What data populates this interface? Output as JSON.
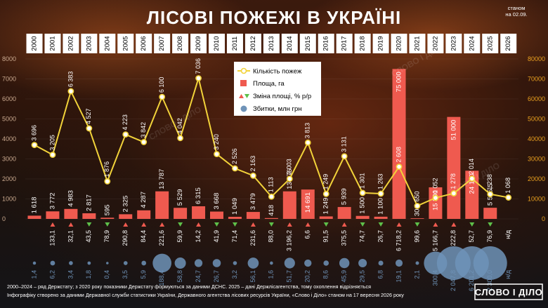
{
  "title": "ЛІСОВІ ПОЖЕЖІ В УКРАЇНІ",
  "as_of_note_line1": "станом",
  "as_of_note_line2": "на 02.09.",
  "legend": {
    "fires": "Кількість пожеж",
    "area": "Площа, га",
    "change": "Зміна площі, % р/р",
    "damage": "Збитки, млн грн"
  },
  "footer": {
    "line1": "2000–2024 – ряд Держстату; з 2020 року показники Держстату формуються за даними ДСНС. 2025 – дані Держлісагентства, тому охоплення відрізняється",
    "line2": "Інфографіку створено за даними Державної служби статистики України, Державного агентства лісових ресурсів України, «Слово і Діло» станом на 17 вересня 2026 року"
  },
  "logo": "СЛОВО І ДІЛО",
  "watermark": "СЛОВО І ДІЛО",
  "colors": {
    "fires_line": "#f2d33a",
    "area_bar": "#ef5a4f",
    "change_up": "#ef5a4f",
    "change_down": "#5ec04a",
    "damage_bubble": "#6f93b8",
    "year_box": "#ffffff"
  },
  "chart_data": {
    "type": "bar",
    "years": [
      "2000",
      "2001",
      "2002",
      "2003",
      "2004",
      "2005",
      "2006",
      "2007",
      "2008",
      "2009",
      "2010",
      "2011",
      "2012",
      "2013",
      "2014",
      "2015",
      "2016",
      "2017",
      "2018",
      "2019",
      "2020",
      "2021",
      "2022",
      "2023",
      "2024",
      "2025",
      "2026"
    ],
    "y_left": {
      "ylim": [
        0,
        8000
      ],
      "ticks": [
        "0",
        "1000",
        "2000",
        "3000",
        "4000",
        "5000",
        "6000",
        "7000",
        "8000"
      ]
    },
    "y_right": {
      "ylim": [
        0,
        80000
      ],
      "ticks": [
        "0",
        "10000",
        "20000",
        "30000",
        "40000",
        "50000",
        "60000",
        "70000",
        "80000"
      ]
    },
    "series": [
      {
        "name": "Кількість пожеж",
        "axis": "left",
        "type": "line",
        "values": [
          3696,
          3205,
          6383,
          4527,
          1876,
          4223,
          3842,
          6100,
          4042,
          7036,
          3240,
          2526,
          2163,
          1113,
          2003,
          3813,
          1249,
          3131,
          1301,
          1263,
          2608,
          650,
          1052,
          1278,
          2014,
          1238,
          1068
        ],
        "labels": [
          "3 696",
          "3 205",
          "6 383",
          "4 527",
          "1 876",
          "4 223",
          "3 842",
          "6 100",
          "4 042",
          "7 036",
          "3 240",
          "2 526",
          "2 163",
          "1 113",
          "2 003",
          "3 813",
          "1 249",
          "3 131",
          "1 301",
          "1 263",
          "2 608",
          "650",
          "1 052",
          "1 278",
          "2 014",
          "1 238",
          "1 068"
        ]
      },
      {
        "name": "Площа, га",
        "axis": "right",
        "type": "bar",
        "values": [
          1618,
          3772,
          4983,
          2817,
          595,
          2325,
          4287,
          13787,
          5529,
          6315,
          3668,
          1049,
          3479,
          418,
          13776,
          14691,
          1249,
          5939,
          1500,
          1100,
          75000,
          300,
          15800,
          51000,
          24100,
          5565.5,
          null
        ],
        "labels": [
          "1 618",
          "3 772",
          "4 983",
          "2 817",
          "595",
          "2 325",
          "4 287",
          "13 787",
          "5 529",
          "6 315",
          "3 668",
          "1 049",
          "3 479",
          "418",
          "13 776",
          "14 691",
          "1 249",
          "5 939",
          "1 500",
          "1 100",
          "75 000",
          "300",
          "15 800",
          "51 000",
          "24 100",
          "5 565,5",
          ""
        ]
      },
      {
        "name": "Зміна площі, % р/р",
        "type": "marker",
        "directions": [
          "none",
          "up",
          "up",
          "down",
          "down",
          "up",
          "up",
          "up",
          "down",
          "up",
          "down",
          "down",
          "up",
          "down",
          "up",
          "up",
          "down",
          "up",
          "down",
          "down",
          "up",
          "down",
          "up",
          "up",
          "down",
          "down",
          "none"
        ],
        "labels": [
          "",
          "133,1",
          "32,1",
          "43,5",
          "78,9",
          "290,8",
          "84,4",
          "221,6",
          "59,9",
          "14,2",
          "41,9",
          "71,4",
          "231,6",
          "88,0",
          "3 196,2",
          "6,6",
          "91,5",
          "375,5",
          "74,7",
          "26,7",
          "6 718,2",
          "99,6",
          "5 166,7",
          "222,8",
          "52,7",
          "76,9",
          "н/д"
        ]
      },
      {
        "name": "Збитки, млн грн",
        "type": "bubble",
        "values": [
          1.4,
          6.2,
          3.4,
          1.8,
          0.4,
          3.5,
          5.9,
          188.4,
          58.8,
          24.7,
          26.7,
          3.2,
          56.1,
          1.6,
          51.7,
          20.2,
          8.6,
          45.9,
          29.5,
          6.8,
          19.1,
          2.1,
          300.4,
          2047.8,
          6201.2,
          2300,
          null
        ],
        "labels": [
          "1,4",
          "6,2",
          "3,4",
          "1,8",
          "0,4",
          "3,5",
          "5,9",
          "188,4",
          "58,8",
          "24,7",
          "26,7",
          "3,2",
          "56,1",
          "1,6",
          "51,7",
          "20,2",
          "8,6",
          "45,9",
          "29,5",
          "6,8",
          "19,1",
          "2,1",
          "300,4",
          "2 047,8",
          "6 201,2",
          "2 300,0",
          "н/д"
        ]
      }
    ]
  }
}
